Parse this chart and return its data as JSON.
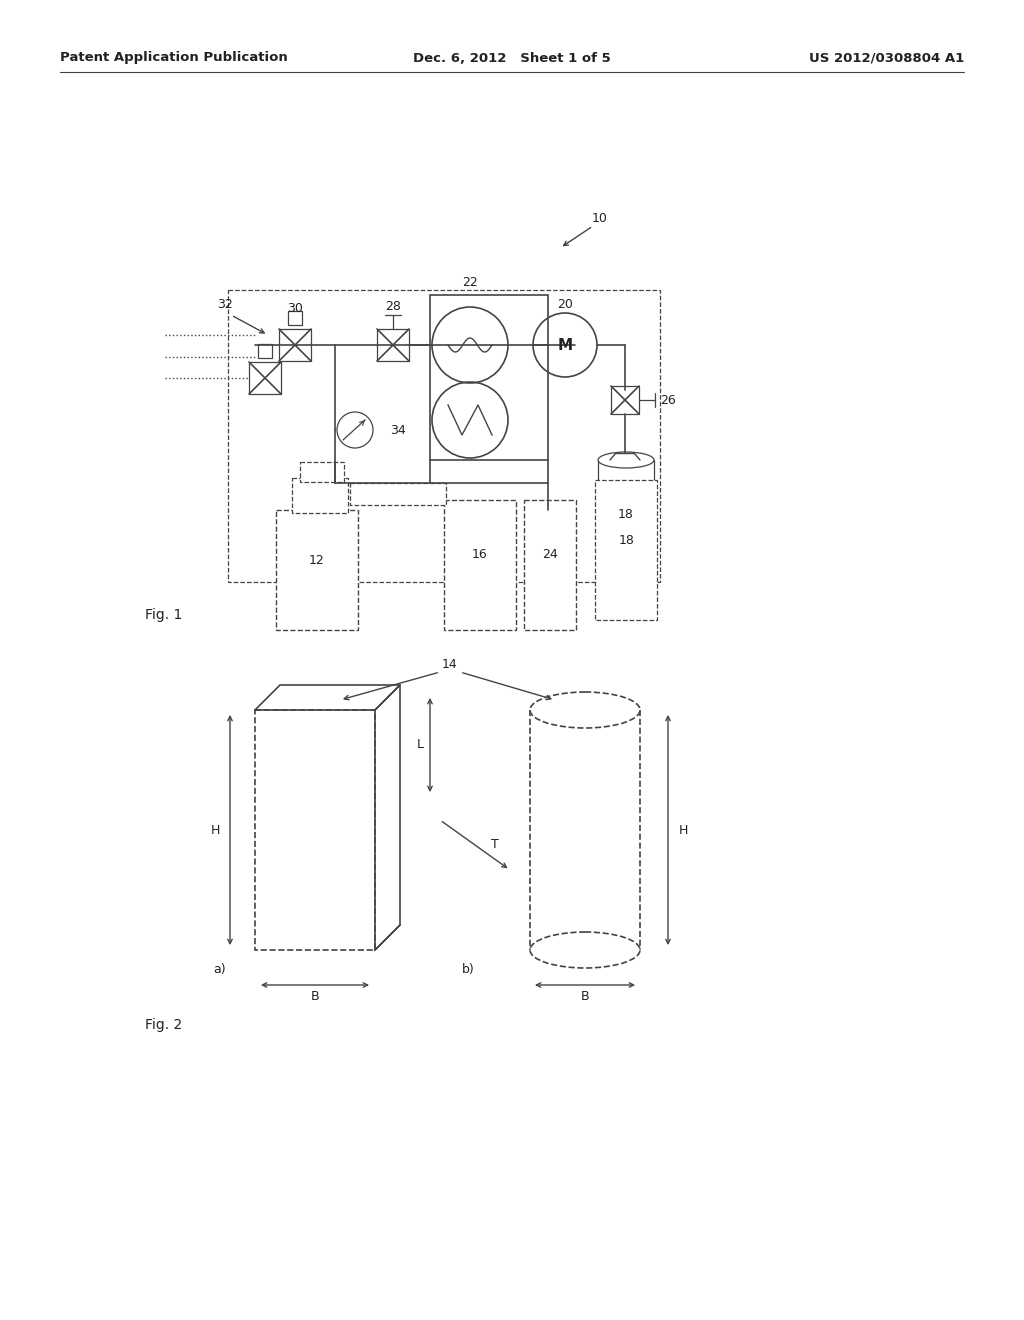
{
  "header_left": "Patent Application Publication",
  "header_center": "Dec. 6, 2012   Sheet 1 of 5",
  "header_right": "US 2012/0308804 A1",
  "bg_color": "#ffffff",
  "line_color": "#444444",
  "text_color": "#222222",
  "fig1_label": "Fig. 1",
  "fig2_label": "Fig. 2"
}
